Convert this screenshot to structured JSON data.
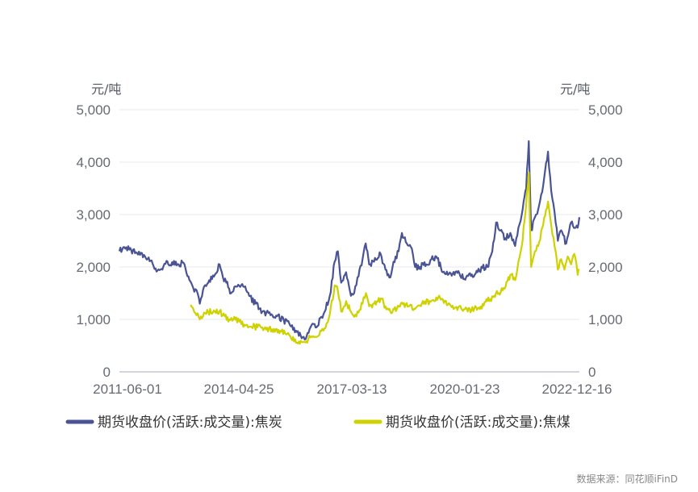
{
  "chart_data": {
    "type": "line",
    "y_unit_left": "元/吨",
    "y_unit_right": "元/吨",
    "ylim": [
      0,
      5000
    ],
    "y_ticks": [
      0,
      1000,
      2000,
      3000,
      4000,
      5000
    ],
    "y_tick_labels": [
      "0",
      "1,000",
      "2,000",
      "3,000",
      "4,000",
      "5,000"
    ],
    "x_range": [
      "2011-06-01",
      "2023-01-31"
    ],
    "x_tick_labels": [
      "2011-06-01",
      "2014-04-25",
      "2017-03-13",
      "2020-01-23",
      "2022-12-16"
    ],
    "grid": true,
    "legend_position": "bottom",
    "colors": {
      "coke": "#4a5494",
      "coking_coal": "#cfd200"
    },
    "series": [
      {
        "name": "期货收盘价(活跃:成交量):焦炭",
        "color": "#4a5494",
        "points": [
          [
            "2011-06-01",
            2300
          ],
          [
            "2011-07-15",
            2380
          ],
          [
            "2011-09-01",
            2330
          ],
          [
            "2011-11-01",
            2280
          ],
          [
            "2012-01-15",
            2230
          ],
          [
            "2012-03-15",
            2120
          ],
          [
            "2012-05-01",
            1970
          ],
          [
            "2012-06-15",
            1950
          ],
          [
            "2012-08-01",
            2060
          ],
          [
            "2012-10-01",
            2090
          ],
          [
            "2012-12-01",
            2050
          ],
          [
            "2013-01-15",
            2080
          ],
          [
            "2013-03-01",
            1820
          ],
          [
            "2013-04-15",
            1600
          ],
          [
            "2013-05-15",
            1560
          ],
          [
            "2013-06-15",
            1300
          ],
          [
            "2013-07-15",
            1560
          ],
          [
            "2013-09-01",
            1700
          ],
          [
            "2013-11-01",
            1850
          ],
          [
            "2013-12-15",
            2050
          ],
          [
            "2014-01-15",
            1800
          ],
          [
            "2014-02-15",
            1700
          ],
          [
            "2014-04-01",
            1500
          ],
          [
            "2014-05-01",
            1620
          ],
          [
            "2014-06-15",
            1640
          ],
          [
            "2014-08-01",
            1620
          ],
          [
            "2014-09-15",
            1450
          ],
          [
            "2014-11-15",
            1300
          ],
          [
            "2015-01-15",
            1150
          ],
          [
            "2015-04-01",
            1080
          ],
          [
            "2015-06-01",
            1060
          ],
          [
            "2015-08-01",
            990
          ],
          [
            "2015-10-01",
            880
          ],
          [
            "2015-12-01",
            760
          ],
          [
            "2016-01-15",
            640
          ],
          [
            "2016-03-01",
            680
          ],
          [
            "2016-04-15",
            890
          ],
          [
            "2016-06-01",
            850
          ],
          [
            "2016-07-15",
            1050
          ],
          [
            "2016-08-15",
            1150
          ],
          [
            "2016-10-01",
            1450
          ],
          [
            "2016-11-15",
            2100
          ],
          [
            "2016-12-15",
            2300
          ],
          [
            "2017-01-15",
            1700
          ],
          [
            "2017-03-01",
            1900
          ],
          [
            "2017-04-15",
            1450
          ],
          [
            "2017-05-15",
            1500
          ],
          [
            "2017-06-15",
            1800
          ],
          [
            "2017-08-01",
            2150
          ],
          [
            "2017-08-30",
            2450
          ],
          [
            "2017-10-01",
            2050
          ],
          [
            "2017-11-15",
            2100
          ],
          [
            "2018-01-15",
            2250
          ],
          [
            "2018-03-01",
            1950
          ],
          [
            "2018-04-15",
            1800
          ],
          [
            "2018-05-15",
            2100
          ],
          [
            "2018-07-01",
            2300
          ],
          [
            "2018-08-01",
            2650
          ],
          [
            "2018-09-15",
            2450
          ],
          [
            "2018-11-01",
            2350
          ],
          [
            "2018-12-01",
            2000
          ],
          [
            "2019-01-15",
            2000
          ],
          [
            "2019-03-15",
            2050
          ],
          [
            "2019-05-01",
            2150
          ],
          [
            "2019-06-15",
            2200
          ],
          [
            "2019-08-15",
            1900
          ],
          [
            "2019-10-01",
            1850
          ],
          [
            "2019-12-01",
            1850
          ],
          [
            "2020-01-15",
            1880
          ],
          [
            "2020-03-01",
            1770
          ],
          [
            "2020-05-01",
            1830
          ],
          [
            "2020-07-01",
            1900
          ],
          [
            "2020-08-15",
            1980
          ],
          [
            "2020-10-01",
            2000
          ],
          [
            "2020-11-15",
            2300
          ],
          [
            "2020-12-20",
            2850
          ],
          [
            "2021-01-20",
            2700
          ],
          [
            "2021-03-15",
            2550
          ],
          [
            "2021-05-01",
            2650
          ],
          [
            "2021-06-15",
            2400
          ],
          [
            "2021-07-15",
            2750
          ],
          [
            "2021-08-15",
            3000
          ],
          [
            "2021-09-25",
            3500
          ],
          [
            "2021-10-19",
            4400
          ],
          [
            "2021-11-10",
            2700
          ],
          [
            "2021-12-15",
            2950
          ],
          [
            "2022-01-15",
            3100
          ],
          [
            "2022-03-01",
            3550
          ],
          [
            "2022-04-15",
            4200
          ],
          [
            "2022-05-15",
            3450
          ],
          [
            "2022-06-15",
            3050
          ],
          [
            "2022-07-15",
            2500
          ],
          [
            "2022-08-15",
            2700
          ],
          [
            "2022-10-01",
            2450
          ],
          [
            "2022-11-15",
            2850
          ],
          [
            "2023-01-15",
            2750
          ],
          [
            "2023-01-31",
            2950
          ]
        ]
      },
      {
        "name": "期货收盘价(活跃:成交量):焦煤",
        "color": "#cfd200",
        "points": [
          [
            "2013-03-22",
            1280
          ],
          [
            "2013-04-15",
            1200
          ],
          [
            "2013-05-15",
            1080
          ],
          [
            "2013-06-15",
            1000
          ],
          [
            "2013-07-15",
            1060
          ],
          [
            "2013-09-01",
            1140
          ],
          [
            "2013-11-01",
            1150
          ],
          [
            "2013-12-15",
            1160
          ],
          [
            "2014-02-01",
            1060
          ],
          [
            "2014-03-15",
            1000
          ],
          [
            "2014-05-01",
            1050
          ],
          [
            "2014-06-15",
            960
          ],
          [
            "2014-08-01",
            900
          ],
          [
            "2014-10-01",
            860
          ],
          [
            "2014-12-01",
            850
          ],
          [
            "2015-02-01",
            820
          ],
          [
            "2015-04-15",
            810
          ],
          [
            "2015-07-01",
            780
          ],
          [
            "2015-09-01",
            720
          ],
          [
            "2015-11-15",
            620
          ],
          [
            "2016-01-15",
            570
          ],
          [
            "2016-03-15",
            620
          ],
          [
            "2016-05-01",
            680
          ],
          [
            "2016-07-15",
            780
          ],
          [
            "2016-09-01",
            920
          ],
          [
            "2016-10-01",
            1100
          ],
          [
            "2016-11-15",
            1650
          ],
          [
            "2016-12-15",
            1550
          ],
          [
            "2017-01-15",
            1150
          ],
          [
            "2017-03-01",
            1350
          ],
          [
            "2017-04-15",
            1150
          ],
          [
            "2017-05-15",
            1050
          ],
          [
            "2017-06-15",
            1150
          ],
          [
            "2017-08-01",
            1300
          ],
          [
            "2017-09-01",
            1500
          ],
          [
            "2017-10-01",
            1250
          ],
          [
            "2017-11-15",
            1300
          ],
          [
            "2018-01-15",
            1400
          ],
          [
            "2018-03-01",
            1250
          ],
          [
            "2018-04-15",
            1150
          ],
          [
            "2018-06-15",
            1200
          ],
          [
            "2018-08-01",
            1320
          ],
          [
            "2018-10-01",
            1250
          ],
          [
            "2018-12-01",
            1200
          ],
          [
            "2019-02-01",
            1300
          ],
          [
            "2019-04-15",
            1350
          ],
          [
            "2019-06-15",
            1420
          ],
          [
            "2019-08-15",
            1380
          ],
          [
            "2019-10-01",
            1280
          ],
          [
            "2019-12-01",
            1220
          ],
          [
            "2020-02-01",
            1210
          ],
          [
            "2020-04-01",
            1150
          ],
          [
            "2020-06-01",
            1200
          ],
          [
            "2020-08-01",
            1250
          ],
          [
            "2020-10-01",
            1350
          ],
          [
            "2020-12-01",
            1450
          ],
          [
            "2021-01-15",
            1500
          ],
          [
            "2021-03-01",
            1600
          ],
          [
            "2021-05-01",
            1850
          ],
          [
            "2021-06-15",
            1750
          ],
          [
            "2021-07-15",
            2100
          ],
          [
            "2021-08-15",
            2400
          ],
          [
            "2021-09-25",
            3200
          ],
          [
            "2021-10-19",
            3800
          ],
          [
            "2021-11-10",
            2000
          ],
          [
            "2021-12-15",
            2300
          ],
          [
            "2022-01-15",
            2400
          ],
          [
            "2022-03-01",
            2800
          ],
          [
            "2022-04-15",
            3250
          ],
          [
            "2022-05-15",
            2800
          ],
          [
            "2022-06-15",
            2400
          ],
          [
            "2022-07-15",
            1950
          ],
          [
            "2022-08-15",
            2150
          ],
          [
            "2022-09-15",
            1950
          ],
          [
            "2022-10-15",
            2200
          ],
          [
            "2022-11-15",
            2050
          ],
          [
            "2022-12-15",
            2250
          ],
          [
            "2023-01-15",
            1850
          ],
          [
            "2023-01-31",
            1950
          ]
        ]
      }
    ]
  },
  "source_label": "数据来源：同花顺iFinD"
}
